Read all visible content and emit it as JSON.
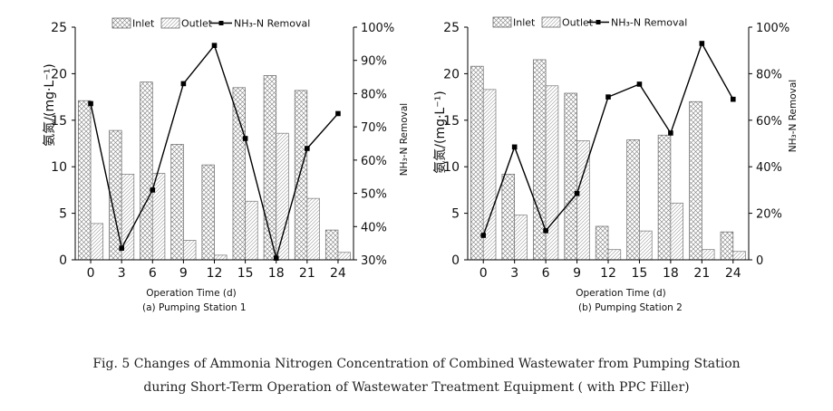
{
  "figure_caption": {
    "line1": "Fig. 5   Changes of Ammonia Nitrogen Concentration of Combined Wastewater from Pumping Station",
    "line2": "during Short-Term Operation of Wastewater Treatment Equipment ( with PPC Filler)"
  },
  "chart_data": [
    {
      "type": "bar",
      "subtitle": "(a) Pumping Station 1",
      "xlabel": "Operation Time (d)",
      "ylabel": "氨氮/(mg·L⁻¹)",
      "y2label": "NH₃-N Removal",
      "categories": [
        "0",
        "3",
        "6",
        "9",
        "12",
        "15",
        "18",
        "21",
        "24"
      ],
      "ylim": [
        0,
        25
      ],
      "y_ticks": [
        "0",
        "5",
        "10",
        "15",
        "20",
        "25"
      ],
      "y2lim": [
        30,
        100
      ],
      "y2_ticks": [
        "30%",
        "40%",
        "50%",
        "60%",
        "70%",
        "80%",
        "90%",
        "100%"
      ],
      "legend": [
        "Inlet",
        "Outlet",
        "NH₃-N Removal"
      ],
      "series": [
        {
          "name": "Inlet",
          "kind": "bar",
          "values": [
            17.1,
            13.9,
            19.1,
            12.4,
            10.2,
            18.5,
            19.8,
            18.2,
            3.2
          ]
        },
        {
          "name": "Outlet",
          "kind": "bar",
          "values": [
            3.9,
            9.2,
            9.3,
            2.1,
            0.5,
            6.3,
            13.6,
            6.6,
            0.8
          ]
        },
        {
          "name": "NH₃-N Removal",
          "kind": "line",
          "axis": "right",
          "values": [
            77,
            33.5,
            51,
            83,
            94.5,
            66.5,
            30.5,
            63.5,
            74
          ]
        }
      ]
    },
    {
      "type": "bar",
      "subtitle": "(b) Pumping Station 2",
      "xlabel": "Operation Time (d)",
      "ylabel": "氨氮/(mg·L⁻¹)",
      "y2label": "NH₃-N Removal",
      "categories": [
        "0",
        "3",
        "6",
        "9",
        "12",
        "15",
        "18",
        "21",
        "24"
      ],
      "ylim": [
        0,
        25
      ],
      "y_ticks": [
        "0",
        "5",
        "10",
        "15",
        "20",
        "25"
      ],
      "y2lim": [
        0,
        100
      ],
      "y2_ticks": [
        "0",
        "20%",
        "40%",
        "60%",
        "80%",
        "100%"
      ],
      "legend": [
        "Inlet",
        "Outlet",
        "NH₃-N Removal"
      ],
      "series": [
        {
          "name": "Inlet",
          "kind": "bar",
          "values": [
            20.8,
            9.2,
            21.5,
            17.9,
            3.6,
            12.9,
            13.4,
            17.0,
            3.0
          ]
        },
        {
          "name": "Outlet",
          "kind": "bar",
          "values": [
            18.3,
            4.8,
            18.7,
            12.8,
            1.1,
            3.1,
            6.1,
            1.1,
            0.9
          ]
        },
        {
          "name": "NH₃-N Removal",
          "kind": "line",
          "axis": "right",
          "values": [
            10.5,
            48.5,
            12.5,
            28.5,
            70,
            75.5,
            54.5,
            93,
            69
          ]
        }
      ]
    }
  ]
}
